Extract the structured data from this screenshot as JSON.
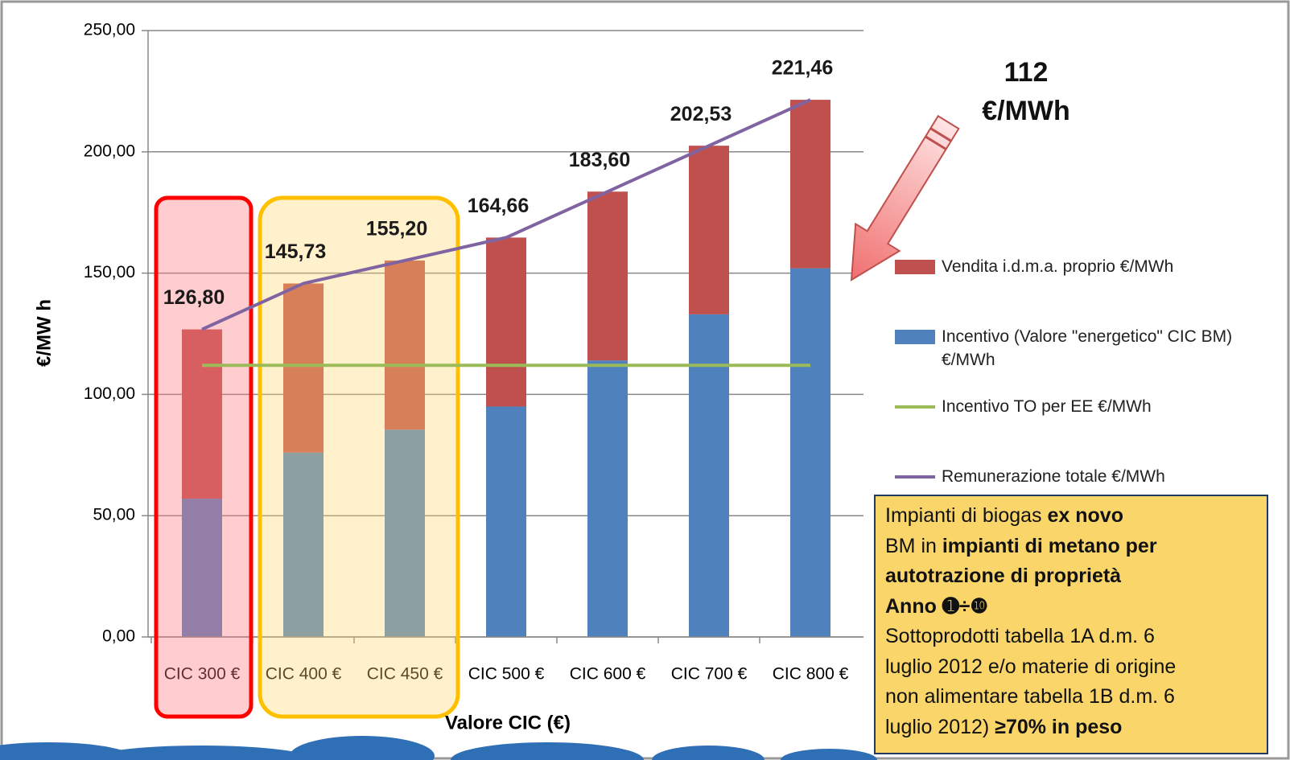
{
  "chart_data": {
    "type": "bar",
    "x_label": "Valore CIC (€)",
    "y_label": "€/MW h",
    "categories": [
      "CIC 300 €",
      "CIC 400 €",
      "CIC 450 €",
      "CIC 500 €",
      "CIC 600 €",
      "CIC 700 €",
      "CIC 800 €"
    ],
    "ylim": [
      0,
      250
    ],
    "yticks": [
      {
        "value": 0,
        "label": "0,00"
      },
      {
        "value": 50,
        "label": "50,00"
      },
      {
        "value": 100,
        "label": "100,00"
      },
      {
        "value": 150,
        "label": "150,00"
      },
      {
        "value": 200,
        "label": "200,00"
      },
      {
        "value": 250,
        "label": "250,00"
      }
    ],
    "grid": true,
    "series": [
      {
        "name": "Vendita i.d.m.a. proprio €/MWh",
        "color": "#c0504d",
        "kind": "bar",
        "values": [
          69.8,
          69.73,
          69.7,
          69.66,
          69.6,
          69.53,
          69.46
        ]
      },
      {
        "name": "Incentivo (Valore \"energetico\" CIC BM) €/MWh",
        "color": "#4f81bd",
        "kind": "bar",
        "values": [
          57,
          76,
          85.5,
          95,
          114,
          133,
          152
        ]
      },
      {
        "name": "Incentivo TO per EE €/MWh",
        "color": "#9bbb59",
        "kind": "line",
        "values": [
          112,
          112,
          112,
          112,
          112,
          112,
          112
        ]
      },
      {
        "name": "Remunerazione totale €/MWh",
        "color": "#8064a2",
        "kind": "line",
        "values": [
          126.8,
          145.73,
          155.2,
          164.66,
          183.6,
          202.53,
          221.46
        ],
        "value_labels": [
          "126,80",
          "145,73",
          "155,20",
          "164,66",
          "183,60",
          "202,53",
          "221,46"
        ]
      }
    ],
    "annotation": "112 €/MWh"
  },
  "note": {
    "lines": [
      [
        {
          "text": "Impianti di biogas "
        },
        {
          "text": "ex novo",
          "bold": true
        }
      ],
      [
        {
          "text": "BM in "
        },
        {
          "text": "impianti di metano per",
          "bold": true
        }
      ],
      [
        {
          "text": "autotrazione di proprietà",
          "bold": true
        }
      ],
      [
        {
          "text": "Anno ➊÷❿",
          "bold": true
        }
      ],
      [
        {
          "text": "Sottoprodotti tabella 1A d.m. 6"
        }
      ],
      [
        {
          "text": "luglio 2012 e/o materie di origine"
        }
      ],
      [
        {
          "text": "non alimentare tabella 1B d.m. 6"
        }
      ],
      [
        {
          "text": "luglio 2012) "
        },
        {
          "text": "≥70% in peso",
          "bold": true
        }
      ]
    ]
  }
}
